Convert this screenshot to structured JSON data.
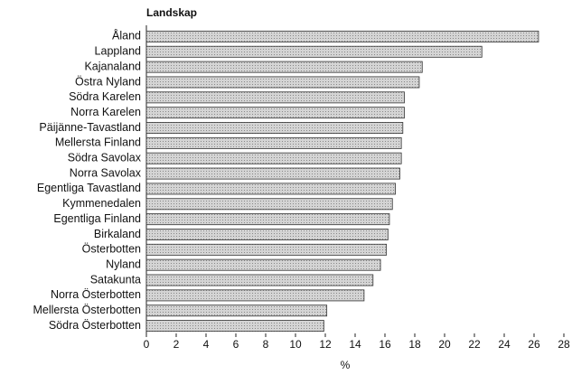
{
  "chart_data": {
    "type": "bar",
    "orientation": "horizontal",
    "title": "Landskap",
    "x_label": "%",
    "categories": [
      "Åland",
      "Lappland",
      "Kajanaland",
      "Östra Nyland",
      "Södra Karelen",
      "Norra Karelen",
      "Päijänne-Tavastland",
      "Mellersta Finland",
      "Södra Savolax",
      "Norra Savolax",
      "Egentliga Tavastland",
      "Kymmenedalen",
      "Egentliga Finland",
      "Birkaland",
      "Österbotten",
      "Nyland",
      "Satakunta",
      "Norra Österbotten",
      "Mellersta Österbotten",
      "Södra Österbotten"
    ],
    "values": [
      26.3,
      22.5,
      18.5,
      18.3,
      17.3,
      17.3,
      17.2,
      17.1,
      17.1,
      17.0,
      16.7,
      16.5,
      16.3,
      16.2,
      16.1,
      15.7,
      15.2,
      14.6,
      12.1,
      11.9
    ],
    "color": "#c8c8c8",
    "xlim": [
      0,
      28
    ],
    "xticks": [
      0,
      2,
      4,
      6,
      8,
      10,
      12,
      14,
      16,
      18,
      20,
      22,
      24,
      26,
      28
    ]
  }
}
